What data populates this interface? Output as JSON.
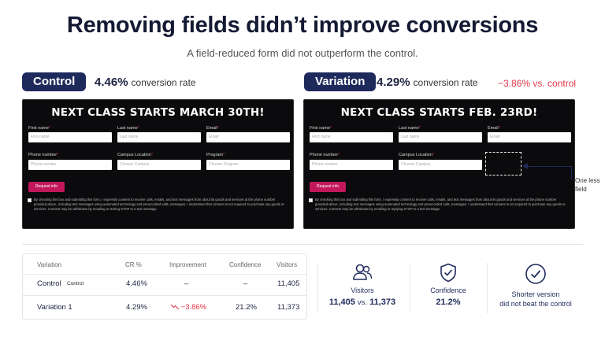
{
  "header": {
    "title": "Removing fields didn’t improve conversions",
    "subtitle": "A field-reduced form did not outperform the control."
  },
  "control": {
    "pill": "Control",
    "rate": "4.46%",
    "rate_label": "conversion rate",
    "form": {
      "headline": "NEXT CLASS STARTS MARCH 30TH!",
      "fields": [
        {
          "label": "First name",
          "placeholder": "First name"
        },
        {
          "label": "Last name",
          "placeholder": "Last name"
        },
        {
          "label": "Email",
          "placeholder": "Email"
        },
        {
          "label": "Phone number",
          "placeholder": "Phone number"
        },
        {
          "label": "Campus Location",
          "placeholder": "Choose Campus"
        },
        {
          "label": "Program",
          "placeholder": "Choose Program"
        }
      ],
      "button": "Request info",
      "consent": "By checking this box and submitting this form, I expressly consent to receive calls, emails, and text messages from about its goods and services at the phone number provided above, including text messages using automated technology and prerecorded calls, messages. I understand that consent is not required to purchase any goods or services. Consent may be withdrawn by emailing or texting STOP to a text message."
    }
  },
  "variation": {
    "pill": "Variation",
    "rate": "4.29%",
    "rate_label": "conversion rate",
    "delta": "−3.86% vs. control",
    "form": {
      "headline": "NEXT CLASS STARTS FEB. 23RD!",
      "fields": [
        {
          "label": "First name",
          "placeholder": "First name"
        },
        {
          "label": "Last name",
          "placeholder": "Last name"
        },
        {
          "label": "Email",
          "placeholder": "Email"
        },
        {
          "label": "Phone number",
          "placeholder": "Phone number"
        },
        {
          "label": "Campus Location",
          "placeholder": "Choose Campus"
        }
      ],
      "button": "Request info",
      "consent": "By checking this box and submitting this form, I expressly consent to receive calls, emails, and text messages from about its goods and services at the phone number provided above, including text messages using automated technology and prerecorded calls, messages. I understand that consent is not required to purchase any goods or services. Consent may be withdrawn by emailing or replying STOP to a text message."
    },
    "annotation": "One less field"
  },
  "results_table": {
    "headers": [
      "Variation",
      "CR %",
      "Improvement",
      "Confidence",
      "Visitors"
    ],
    "rows": [
      {
        "name": "Control",
        "badge": "Control",
        "cr": "4.46%",
        "improvement": "–",
        "confidence": "–",
        "visitors": "11,405"
      },
      {
        "name": "Variation 1",
        "badge": "",
        "cr": "4.29%",
        "improvement": "−3.86%",
        "confidence": "21.2%",
        "visitors": "11,373"
      }
    ]
  },
  "stats": {
    "visitors": {
      "label": "Visitors",
      "a": "11,405",
      "vs": "vs.",
      "b": "11,373",
      "icon": "users-icon"
    },
    "confidence": {
      "label": "Confidence",
      "value": "21.2%",
      "icon": "shield-check-icon"
    },
    "verdict": {
      "line1": "Shorter version",
      "line2": "did not beat the control",
      "icon": "check-circle-icon"
    }
  },
  "colors": {
    "navy": "#1f2a5c",
    "negative": "#e0344a",
    "form_bg": "#0b0b0d",
    "button": "#c2185b"
  }
}
